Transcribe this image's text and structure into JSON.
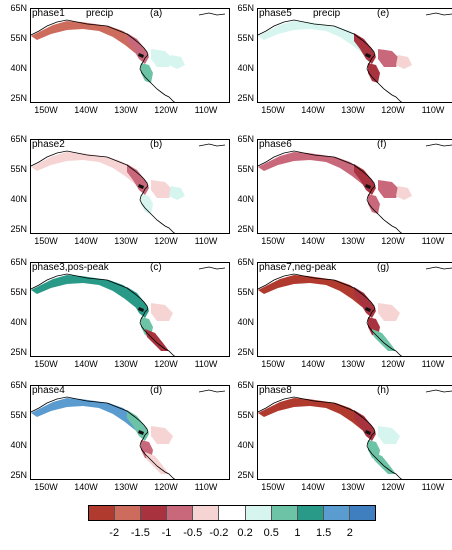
{
  "panels": [
    {
      "title": "phase1",
      "subtitle": "precip",
      "letter": "(a)"
    },
    {
      "title": "phase5",
      "subtitle": "precip",
      "letter": "(e)"
    },
    {
      "title": "phase2",
      "subtitle": "",
      "letter": "(b)"
    },
    {
      "title": "phase6",
      "subtitle": "",
      "letter": "(f)"
    },
    {
      "title": "phase3,pos-peak",
      "subtitle": "",
      "letter": "(c)"
    },
    {
      "title": "phase7,neg-peak",
      "subtitle": "",
      "letter": "(g)"
    },
    {
      "title": "phase4",
      "subtitle": "",
      "letter": "(d)"
    },
    {
      "title": "phase8",
      "subtitle": "",
      "letter": "(h)"
    }
  ],
  "lat_labels": [
    "65N",
    "55N",
    "40N",
    "25N"
  ],
  "lon_labels": [
    "150W",
    "140W",
    "130W",
    "120W",
    "110W"
  ],
  "colorbar": {
    "labels": [
      "-2",
      "-1.5",
      "-1",
      "-0.5",
      "-0.2",
      "0.2",
      "0.5",
      "1",
      "1.5",
      "2"
    ],
    "colors": [
      "#b03a2e",
      "#cd6b5d",
      "#a8323e",
      "#c9687a",
      "#f6d4d4",
      "#ffffff",
      "#d6f5ee",
      "#6cc3a6",
      "#2a9a88",
      "#5a9bd0",
      "#3f7fbf"
    ]
  }
}
